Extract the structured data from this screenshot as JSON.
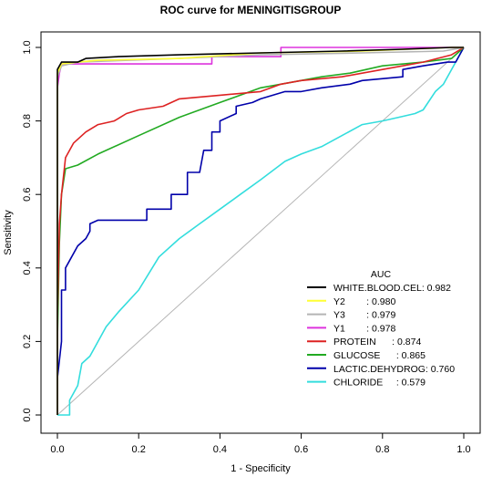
{
  "chart_data": {
    "type": "line",
    "title": "ROC curve for MENINGITISGROUP",
    "xlabel": "1 - Specificity",
    "ylabel": "Sensitivity",
    "xlim": [
      0,
      1
    ],
    "ylim": [
      0,
      1
    ],
    "x_ticks": [
      "0.0",
      "0.2",
      "0.4",
      "0.6",
      "0.8",
      "1.0"
    ],
    "y_ticks": [
      "0.0",
      "0.2",
      "0.4",
      "0.6",
      "0.8",
      "1.0"
    ],
    "grid": false,
    "legend_title": "AUC",
    "legend_position": "bottom-right",
    "diagonal_color": "#b4b4b4",
    "series": [
      {
        "legend_label": "WHITE.BLOOD.CEL: 0.982",
        "color": "#000000",
        "points": [
          [
            0,
            0
          ],
          [
            0,
            0.94
          ],
          [
            0.01,
            0.96
          ],
          [
            0.05,
            0.96
          ],
          [
            0.07,
            0.97
          ],
          [
            0.15,
            0.975
          ],
          [
            0.3,
            0.98
          ],
          [
            0.5,
            0.985
          ],
          [
            0.7,
            0.99
          ],
          [
            0.85,
            0.995
          ],
          [
            0.97,
            1.0
          ],
          [
            1,
            1
          ]
        ]
      },
      {
        "legend_label": "Y2        : 0.980",
        "color": "#ffff33",
        "points": [
          [
            0,
            0
          ],
          [
            0,
            0.93
          ],
          [
            0.01,
            0.955
          ],
          [
            0.05,
            0.96
          ],
          [
            0.1,
            0.965
          ],
          [
            0.3,
            0.97
          ],
          [
            0.5,
            0.985
          ],
          [
            0.75,
            0.99
          ],
          [
            0.97,
            1.0
          ],
          [
            1,
            1
          ]
        ]
      },
      {
        "legend_label": "Y3        : 0.979",
        "color": "#b4b4b4",
        "points": [
          [
            0,
            0
          ],
          [
            0,
            0.92
          ],
          [
            0.01,
            0.95
          ],
          [
            0.05,
            0.96
          ],
          [
            0.1,
            0.962
          ],
          [
            0.3,
            0.97
          ],
          [
            0.5,
            0.98
          ],
          [
            0.75,
            0.985
          ],
          [
            0.95,
            0.99
          ],
          [
            1,
            1
          ]
        ]
      },
      {
        "legend_label": "Y1        : 0.978",
        "color": "#dd33dd",
        "points": [
          [
            0,
            0
          ],
          [
            0,
            0.89
          ],
          [
            0.005,
            0.93
          ],
          [
            0.01,
            0.955
          ],
          [
            0.38,
            0.955
          ],
          [
            0.38,
            0.975
          ],
          [
            0.55,
            0.975
          ],
          [
            0.55,
            1.0
          ],
          [
            1,
            1
          ]
        ]
      },
      {
        "legend_label": "PROTEIN      : 0.874",
        "color": "#dd2222",
        "points": [
          [
            0,
            0
          ],
          [
            0,
            0.26
          ],
          [
            0.005,
            0.52
          ],
          [
            0.01,
            0.6
          ],
          [
            0.02,
            0.7
          ],
          [
            0.04,
            0.74
          ],
          [
            0.07,
            0.77
          ],
          [
            0.1,
            0.79
          ],
          [
            0.14,
            0.8
          ],
          [
            0.17,
            0.82
          ],
          [
            0.2,
            0.83
          ],
          [
            0.26,
            0.84
          ],
          [
            0.3,
            0.86
          ],
          [
            0.4,
            0.87
          ],
          [
            0.5,
            0.88
          ],
          [
            0.55,
            0.9
          ],
          [
            0.6,
            0.91
          ],
          [
            0.7,
            0.92
          ],
          [
            0.8,
            0.94
          ],
          [
            0.9,
            0.96
          ],
          [
            0.97,
            0.98
          ],
          [
            1,
            1
          ]
        ]
      },
      {
        "legend_label": "GLUCOSE      : 0.865",
        "color": "#22aa22",
        "points": [
          [
            0,
            0
          ],
          [
            0,
            0.2
          ],
          [
            0.005,
            0.47
          ],
          [
            0.01,
            0.6
          ],
          [
            0.02,
            0.67
          ],
          [
            0.05,
            0.68
          ],
          [
            0.1,
            0.71
          ],
          [
            0.2,
            0.76
          ],
          [
            0.3,
            0.81
          ],
          [
            0.4,
            0.85
          ],
          [
            0.5,
            0.89
          ],
          [
            0.55,
            0.9
          ],
          [
            0.65,
            0.92
          ],
          [
            0.72,
            0.93
          ],
          [
            0.8,
            0.95
          ],
          [
            0.9,
            0.96
          ],
          [
            0.97,
            0.97
          ],
          [
            1,
            1
          ]
        ]
      },
      {
        "legend_label": "LACTIC.DEHYDROG: 0.760",
        "color": "#0000aa",
        "points": [
          [
            0,
            0
          ],
          [
            0,
            0.1
          ],
          [
            0.01,
            0.2
          ],
          [
            0.01,
            0.34
          ],
          [
            0.02,
            0.34
          ],
          [
            0.02,
            0.4
          ],
          [
            0.03,
            0.42
          ],
          [
            0.05,
            0.46
          ],
          [
            0.07,
            0.48
          ],
          [
            0.08,
            0.5
          ],
          [
            0.08,
            0.52
          ],
          [
            0.1,
            0.53
          ],
          [
            0.22,
            0.53
          ],
          [
            0.22,
            0.56
          ],
          [
            0.28,
            0.56
          ],
          [
            0.28,
            0.6
          ],
          [
            0.32,
            0.6
          ],
          [
            0.32,
            0.66
          ],
          [
            0.35,
            0.66
          ],
          [
            0.36,
            0.72
          ],
          [
            0.38,
            0.72
          ],
          [
            0.38,
            0.77
          ],
          [
            0.4,
            0.77
          ],
          [
            0.4,
            0.8
          ],
          [
            0.44,
            0.82
          ],
          [
            0.44,
            0.84
          ],
          [
            0.48,
            0.85
          ],
          [
            0.5,
            0.86
          ],
          [
            0.53,
            0.87
          ],
          [
            0.56,
            0.88
          ],
          [
            0.6,
            0.88
          ],
          [
            0.65,
            0.89
          ],
          [
            0.72,
            0.9
          ],
          [
            0.75,
            0.91
          ],
          [
            0.85,
            0.92
          ],
          [
            0.85,
            0.94
          ],
          [
            0.9,
            0.95
          ],
          [
            0.96,
            0.96
          ],
          [
            0.98,
            0.96
          ],
          [
            1,
            1
          ]
        ]
      },
      {
        "legend_label": "CHLORIDE     : 0.579",
        "color": "#33dddd",
        "points": [
          [
            0,
            0
          ],
          [
            0.03,
            0
          ],
          [
            0.03,
            0.04
          ],
          [
            0.05,
            0.08
          ],
          [
            0.06,
            0.14
          ],
          [
            0.08,
            0.16
          ],
          [
            0.1,
            0.2
          ],
          [
            0.12,
            0.24
          ],
          [
            0.15,
            0.28
          ],
          [
            0.2,
            0.34
          ],
          [
            0.25,
            0.43
          ],
          [
            0.3,
            0.48
          ],
          [
            0.35,
            0.52
          ],
          [
            0.4,
            0.56
          ],
          [
            0.45,
            0.6
          ],
          [
            0.5,
            0.64
          ],
          [
            0.56,
            0.69
          ],
          [
            0.6,
            0.71
          ],
          [
            0.65,
            0.73
          ],
          [
            0.7,
            0.76
          ],
          [
            0.75,
            0.79
          ],
          [
            0.8,
            0.8
          ],
          [
            0.84,
            0.81
          ],
          [
            0.88,
            0.82
          ],
          [
            0.9,
            0.83
          ],
          [
            0.93,
            0.88
          ],
          [
            0.95,
            0.9
          ],
          [
            0.97,
            0.94
          ],
          [
            0.98,
            0.96
          ],
          [
            1,
            1
          ]
        ]
      }
    ]
  }
}
